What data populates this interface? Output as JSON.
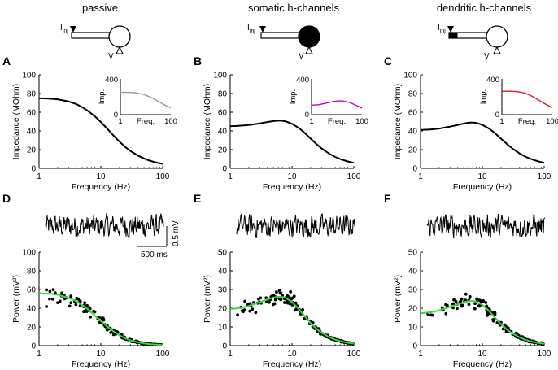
{
  "columns": [
    {
      "title": "passive",
      "diagram": {
        "current_label": "I",
        "current_sub": "inj",
        "voltage_label": "V",
        "soma_fill": "#ffffff",
        "dendrite_fill": "#ffffff"
      }
    },
    {
      "title": "somatic h-channels",
      "diagram": {
        "current_label": "I",
        "current_sub": "inj",
        "voltage_label": "V",
        "soma_fill": "#000000",
        "dendrite_fill": "#ffffff"
      }
    },
    {
      "title": "dendritic h-channels",
      "diagram": {
        "current_label": "I",
        "current_sub": "inj",
        "voltage_label": "V",
        "soma_fill": "#ffffff",
        "dendrite_fill": "#000000"
      }
    }
  ],
  "colors": {
    "passive_inset": "#9a9a9a",
    "somatic_inset": "#cc00cc",
    "dendritic_inset": "#cc2222",
    "fit": "#33dd33",
    "data": "#000000"
  },
  "scale_bar": {
    "voltage": "0.5 mV",
    "time": "500 ms"
  },
  "chart_data": [
    {
      "panel": "A",
      "type": "line",
      "xscale": "log",
      "xlim": [
        1,
        100
      ],
      "ylim": [
        0,
        100
      ],
      "xticks": [
        "1",
        "10",
        "100"
      ],
      "yticks": [
        "0",
        "20",
        "40",
        "60",
        "80",
        "100"
      ],
      "xlabel": "Frequency (Hz)",
      "ylabel": "Impedance (MOhm)",
      "series": [
        {
          "name": "impedance",
          "x": [
            1,
            1.5,
            2,
            3,
            4,
            5,
            6,
            8,
            10,
            13,
            16,
            20,
            25,
            30,
            40,
            50,
            60,
            70,
            85,
            100
          ],
          "y": [
            75,
            74.5,
            73.8,
            71.5,
            68.7,
            65.4,
            62,
            55.6,
            49.5,
            41.6,
            35.1,
            28.5,
            22.6,
            18.6,
            13.5,
            10.5,
            8.5,
            7.1,
            5.7,
            4.8
          ]
        }
      ],
      "inset": {
        "ylabel": "Imp.",
        "xlabel": "Freq.",
        "xticks": [
          "1",
          "100"
        ],
        "yticks": [
          "0",
          "400"
        ],
        "ylim": [
          0,
          400
        ],
        "xlim": [
          1,
          100
        ],
        "x": [
          1,
          2,
          4,
          8,
          16,
          32,
          64,
          100
        ],
        "y": [
          250,
          249,
          244,
          228,
          195,
          148,
          100,
          76
        ]
      }
    },
    {
      "panel": "B",
      "type": "line",
      "xscale": "log",
      "xlim": [
        1,
        100
      ],
      "ylim": [
        0,
        100
      ],
      "xticks": [
        "1",
        "10",
        "100"
      ],
      "yticks": [
        "0",
        "20",
        "40",
        "60",
        "80",
        "100"
      ],
      "xlabel": "Frequency (Hz)",
      "ylabel": "Impedance (MOhm)",
      "series": [
        {
          "name": "impedance",
          "x": [
            1,
            1.5,
            2,
            3,
            4,
            5,
            6,
            7,
            8,
            10,
            13,
            16,
            20,
            25,
            30,
            40,
            50,
            60,
            70,
            85,
            100
          ],
          "y": [
            45,
            45.6,
            46.3,
            48,
            49.5,
            50.5,
            51,
            50.8,
            50.1,
            47.6,
            43,
            38,
            31.8,
            25.8,
            21.4,
            15.6,
            12.2,
            10,
            8.5,
            6.9,
            5.8
          ]
        }
      ],
      "inset": {
        "ylabel": "Imp.",
        "xlabel": "Freq.",
        "xticks": [
          "1",
          "100"
        ],
        "yticks": [
          "0",
          "400"
        ],
        "ylim": [
          0,
          400
        ],
        "xlim": [
          1,
          100
        ],
        "x": [
          1,
          2,
          4,
          8,
          16,
          32,
          64,
          100
        ],
        "y": [
          105,
          112,
          130,
          150,
          155,
          137,
          100,
          72
        ]
      }
    },
    {
      "panel": "C",
      "type": "line",
      "xscale": "log",
      "xlim": [
        1,
        100
      ],
      "ylim": [
        0,
        100
      ],
      "xticks": [
        "1",
        "10",
        "100"
      ],
      "yticks": [
        "0",
        "20",
        "40",
        "60",
        "80",
        "100"
      ],
      "xlabel": "Frequency (Hz)",
      "ylabel": "Impedance (MOhm)",
      "series": [
        {
          "name": "impedance",
          "x": [
            1,
            1.5,
            2,
            3,
            4,
            5,
            6,
            7,
            8,
            10,
            13,
            16,
            20,
            25,
            30,
            40,
            50,
            60,
            70,
            85,
            100
          ],
          "y": [
            41,
            41.6,
            42.5,
            44.6,
            46.4,
            47.9,
            48.8,
            49,
            48.6,
            46.5,
            42.3,
            37.6,
            31.7,
            26,
            21.7,
            15.9,
            12.4,
            10.2,
            8.6,
            7,
            5.9
          ]
        }
      ],
      "inset": {
        "ylabel": "Imp.",
        "xlabel": "Freq.",
        "xticks": [
          "1",
          "100"
        ],
        "yticks": [
          "0",
          "400"
        ],
        "ylim": [
          0,
          400
        ],
        "xlim": [
          1,
          100
        ],
        "x": [
          1,
          2,
          4,
          8,
          16,
          32,
          64,
          100
        ],
        "y": [
          262,
          262,
          258,
          242,
          205,
          155,
          105,
          80
        ]
      }
    },
    {
      "panel": "D",
      "type": "scatter",
      "xscale": "log",
      "xlim": [
        1,
        100
      ],
      "ylim": [
        0,
        100
      ],
      "xticks": [
        "1",
        "10",
        "100"
      ],
      "yticks": [
        "0",
        "20",
        "40",
        "60",
        "80",
        "100"
      ],
      "xlabel": "Frequency (Hz)",
      "ylabel": "Power (mV²)",
      "fit": {
        "x": [
          1,
          1.5,
          2,
          3,
          4,
          5,
          6,
          8,
          10,
          13,
          16,
          20,
          25,
          30,
          40,
          50,
          60,
          70,
          85,
          100
        ],
        "y": [
          56,
          55.4,
          54.4,
          51,
          47.5,
          43.4,
          39.4,
          32,
          26.3,
          19.8,
          15.3,
          11,
          7.7,
          5.6,
          3.5,
          2.3,
          1.7,
          1.3,
          0.9,
          0.7
        ]
      }
    },
    {
      "panel": "E",
      "type": "scatter",
      "xscale": "log",
      "xlim": [
        1,
        100
      ],
      "ylim": [
        0,
        50
      ],
      "xticks": [
        "1",
        "10",
        "100"
      ],
      "yticks": [
        "0",
        "10",
        "20",
        "30",
        "40",
        "50"
      ],
      "xlabel": "Frequency (Hz)",
      "ylabel": "Power (mV²)",
      "fit": {
        "x": [
          1,
          1.5,
          2,
          3,
          4,
          5,
          6,
          7,
          8,
          10,
          13,
          16,
          20,
          25,
          30,
          40,
          50,
          60,
          70,
          85,
          100
        ],
        "y": [
          19.5,
          20.2,
          21.2,
          23.2,
          24.7,
          25.7,
          26.1,
          26,
          25.4,
          23.3,
          19.4,
          15.8,
          12,
          8.9,
          6.9,
          4.5,
          3.2,
          2.4,
          1.9,
          1.4,
          1.1
        ]
      }
    },
    {
      "panel": "F",
      "type": "scatter",
      "xscale": "log",
      "xlim": [
        1,
        100
      ],
      "ylim": [
        0,
        50
      ],
      "xticks": [
        "1",
        "10",
        "100"
      ],
      "yticks": [
        "0",
        "10",
        "20",
        "30",
        "40",
        "50"
      ],
      "xlabel": "Frequency (Hz)",
      "ylabel": "Power (mV²)",
      "fit": {
        "x": [
          1,
          1.5,
          2,
          3,
          4,
          5,
          6,
          7,
          8,
          10,
          13,
          16,
          20,
          25,
          30,
          40,
          50,
          60,
          70,
          85,
          100
        ],
        "y": [
          17.3,
          17.9,
          18.8,
          20.7,
          22.1,
          23.2,
          23.8,
          23.9,
          23.5,
          21.8,
          18.3,
          15,
          11.5,
          8.6,
          6.7,
          4.4,
          3.1,
          2.3,
          1.8,
          1.3,
          1
        ]
      }
    }
  ]
}
